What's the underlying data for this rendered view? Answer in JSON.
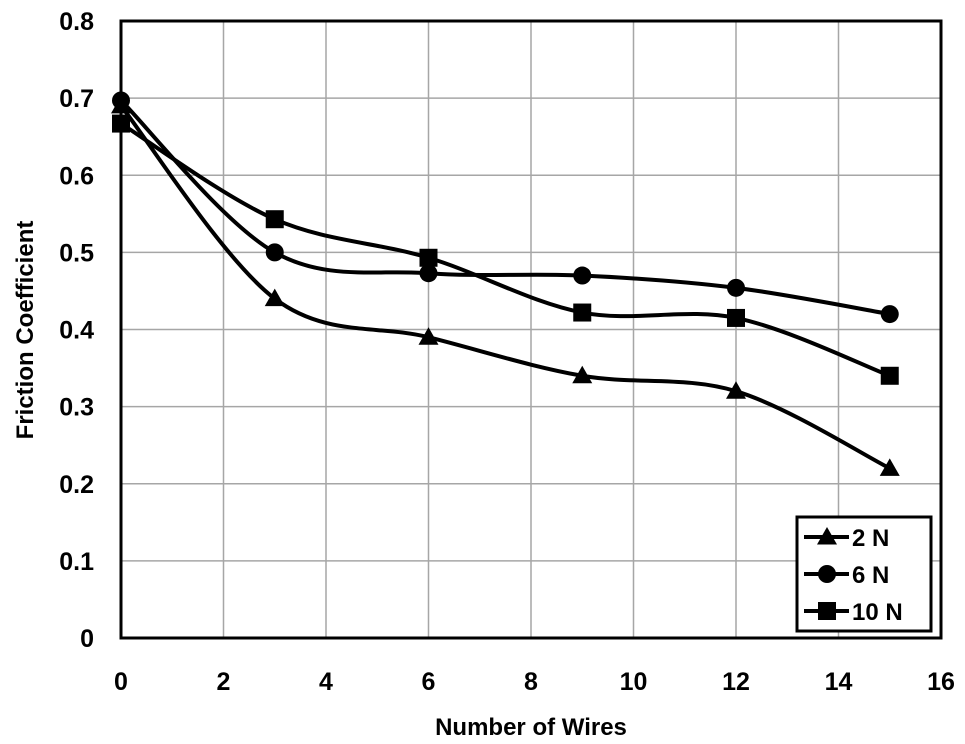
{
  "chart_data": {
    "type": "line",
    "title": "",
    "xlabel": "Number of Wires",
    "ylabel": "Friction Coefficient",
    "xlim": [
      0,
      16
    ],
    "ylim": [
      0,
      0.8
    ],
    "xticks": [
      0,
      2,
      4,
      6,
      8,
      10,
      12,
      14,
      16
    ],
    "yticks": [
      0,
      0.1,
      0.2,
      0.3,
      0.4,
      0.5,
      0.6,
      0.7,
      0.8
    ],
    "grid": true,
    "legend_position": "bottom-right",
    "smooth": true,
    "x": [
      0,
      3,
      6,
      9,
      12,
      15
    ],
    "series": [
      {
        "name": "2  N",
        "marker": "triangle",
        "values": [
          0.69,
          0.44,
          0.39,
          0.34,
          0.32,
          0.22
        ]
      },
      {
        "name": "6  N",
        "marker": "circle",
        "values": [
          0.697,
          0.5,
          0.473,
          0.47,
          0.454,
          0.42
        ]
      },
      {
        "name": "10 N",
        "marker": "square",
        "values": [
          0.667,
          0.543,
          0.493,
          0.422,
          0.415,
          0.34
        ]
      }
    ],
    "colors": {
      "line": "#000000",
      "grid": "#a6a6a6",
      "background": "#ffffff"
    }
  }
}
